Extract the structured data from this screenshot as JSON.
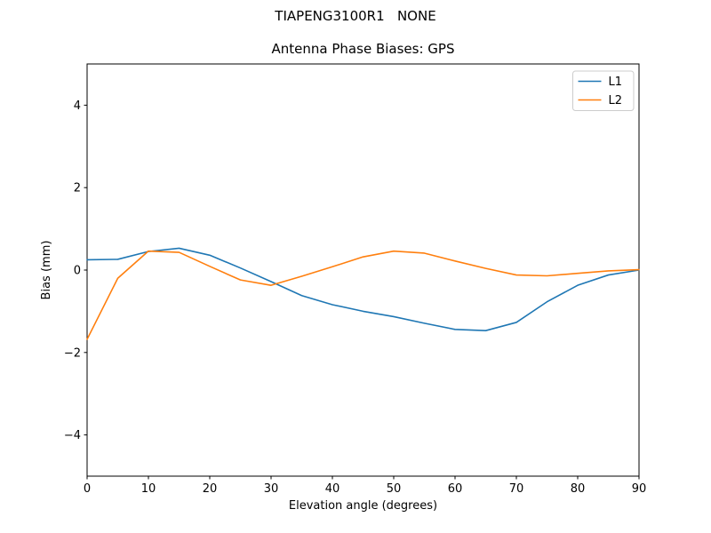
{
  "figure": {
    "suptitle": "TIAPENG3100R1   NONE",
    "background": "#ffffff",
    "frame_color": "#000000",
    "legend_border_color": "#cccccc"
  },
  "chart_data": {
    "type": "line",
    "title": "Antenna Phase Biases: GPS",
    "xlabel": "Elevation angle (degrees)",
    "ylabel": "Bias (mm)",
    "xlim": [
      0,
      90
    ],
    "ylim": [
      -5,
      5
    ],
    "xticks": [
      0,
      10,
      20,
      30,
      40,
      50,
      60,
      70,
      80,
      90
    ],
    "yticks": [
      -4,
      -2,
      0,
      2,
      4
    ],
    "grid": false,
    "legend_position": "upper right",
    "x": [
      0,
      5,
      10,
      15,
      20,
      25,
      30,
      35,
      40,
      45,
      50,
      55,
      60,
      65,
      70,
      75,
      80,
      85,
      90
    ],
    "series": [
      {
        "name": "L1",
        "color": "#1f77b4",
        "values": [
          0.25,
          0.26,
          0.45,
          0.53,
          0.36,
          0.05,
          -0.28,
          -0.62,
          -0.84,
          -1.0,
          -1.13,
          -1.29,
          -1.44,
          -1.47,
          -1.27,
          -0.77,
          -0.37,
          -0.12,
          0.0
        ]
      },
      {
        "name": "L2",
        "color": "#ff7f0e",
        "values": [
          -1.68,
          -0.2,
          0.46,
          0.43,
          0.09,
          -0.24,
          -0.37,
          -0.15,
          0.08,
          0.32,
          0.46,
          0.41,
          0.22,
          0.04,
          -0.12,
          -0.14,
          -0.08,
          -0.02,
          0.01
        ]
      }
    ]
  }
}
